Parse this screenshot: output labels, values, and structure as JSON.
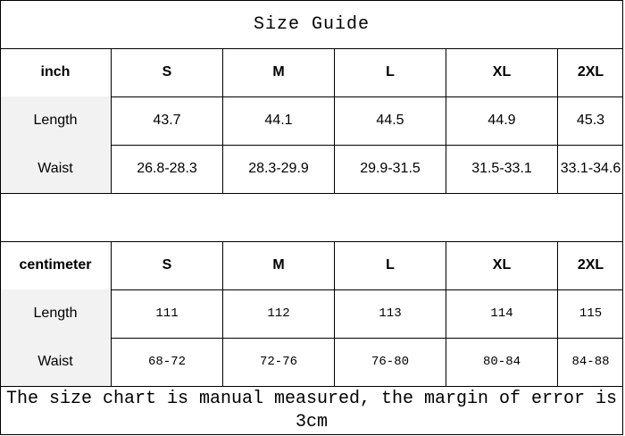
{
  "title": "Size Guide",
  "inch": {
    "header": [
      "inch",
      "S",
      "M",
      "L",
      "XL",
      "2XL"
    ],
    "rows": [
      [
        "Length",
        "43.7",
        "44.1",
        "44.5",
        "44.9",
        "45.3"
      ],
      [
        "Waist",
        "26.8-28.3",
        "28.3-29.9",
        "29.9-31.5",
        "31.5-33.1",
        "33.1-34.6"
      ]
    ]
  },
  "cm": {
    "header": [
      "centimeter",
      "S",
      "M",
      "L",
      "XL",
      "2XL"
    ],
    "rows": [
      [
        "Length",
        "111",
        "112",
        "113",
        "114",
        "115"
      ],
      [
        "Waist",
        "68-72",
        "72-76",
        "76-80",
        "80-84",
        "84-88"
      ]
    ]
  },
  "footer": "The size chart is manual measured, the margin of error is 3cm",
  "colors": {
    "label_bg": "#f2f2f2",
    "border": "#000000"
  }
}
